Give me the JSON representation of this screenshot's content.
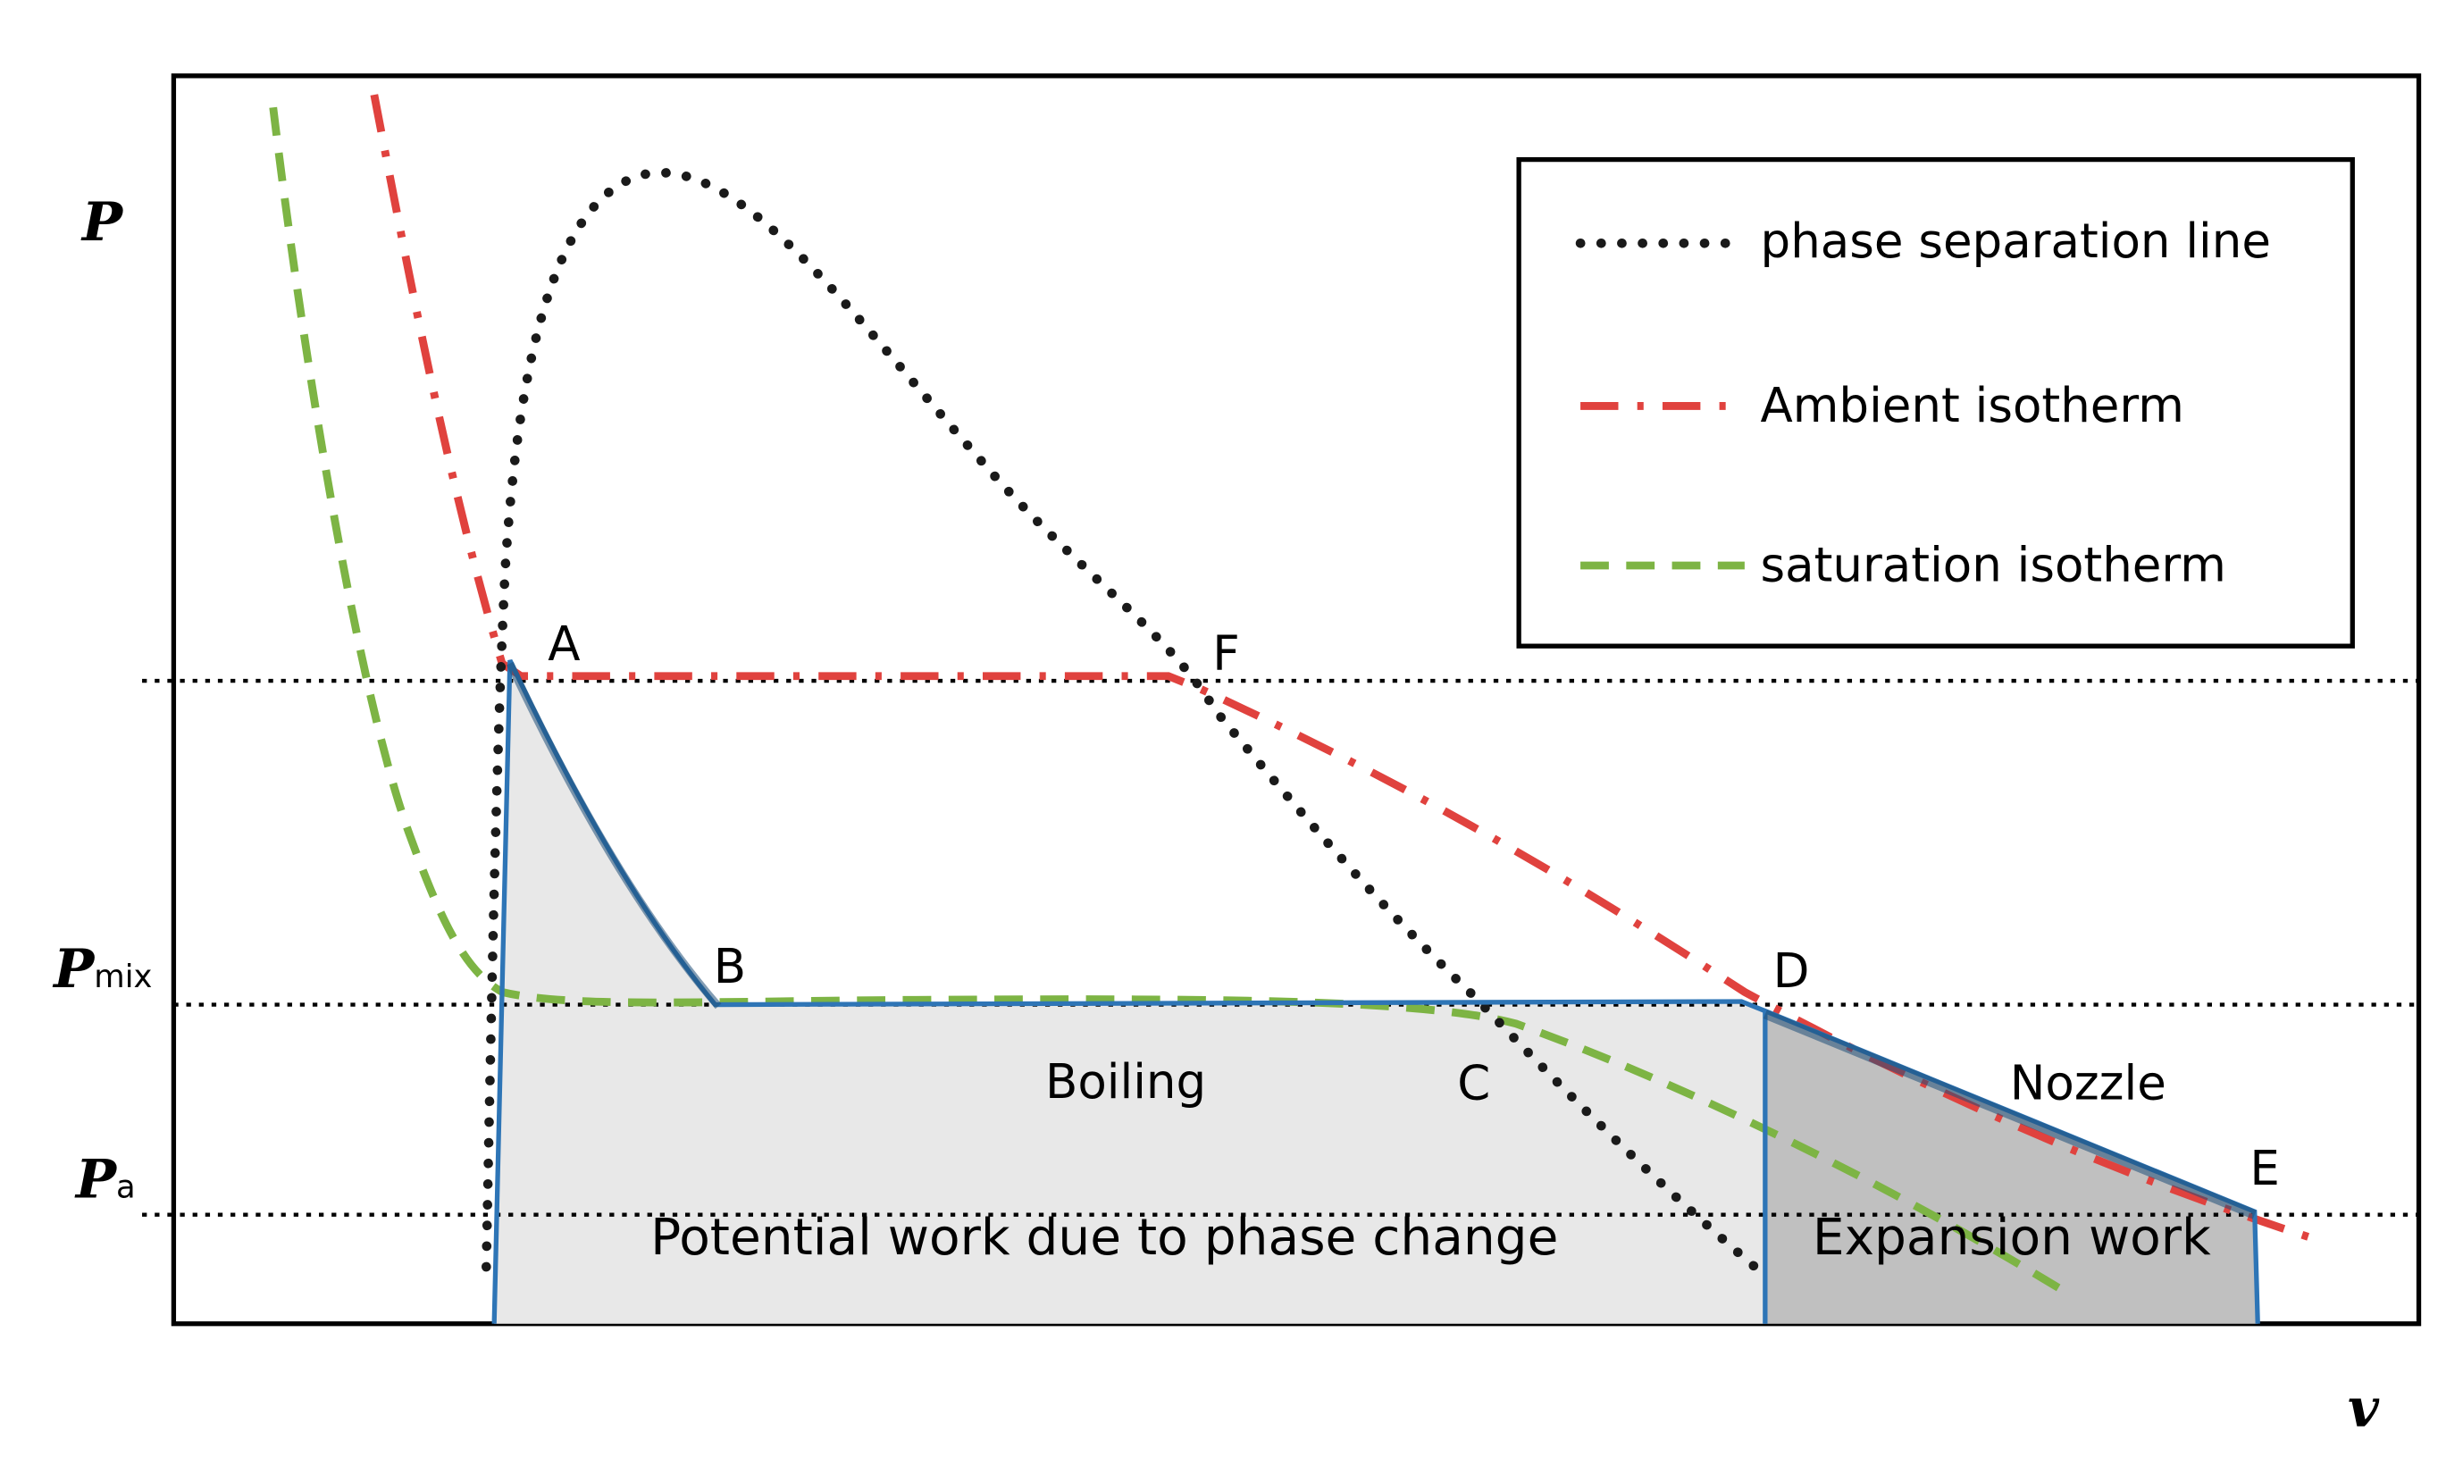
{
  "axes": {
    "y_symbol": "P",
    "x_symbol": "v",
    "pmix_main": "P",
    "pmix_sub": "mix",
    "pa_main": "P",
    "pa_sub": "a"
  },
  "points": {
    "A": "A",
    "B": "B",
    "C": "C",
    "D": "D",
    "E": "E",
    "F": "F"
  },
  "regions": {
    "boiling": "Boiling",
    "nozzle": "Nozzle",
    "potential_work": "Potential work due to phase change",
    "expansion_work": "Expansion work"
  },
  "legend": {
    "items": [
      {
        "label": "phase separation line",
        "style": "dotted",
        "color": "#1a1a1a",
        "icon": "dotted-line-icon"
      },
      {
        "label": "Ambient isotherm",
        "style": "dash-dot",
        "color": "#e0423e",
        "icon": "dash-dot-line-icon"
      },
      {
        "label": "saturation isotherm",
        "style": "dashed",
        "color": "#7db444",
        "icon": "dashed-line-icon"
      }
    ]
  },
  "colors": {
    "cycle_outline": "#2e75b6",
    "light_fill": "#e8e8e8",
    "dark_fill": "#c0c0c0"
  }
}
